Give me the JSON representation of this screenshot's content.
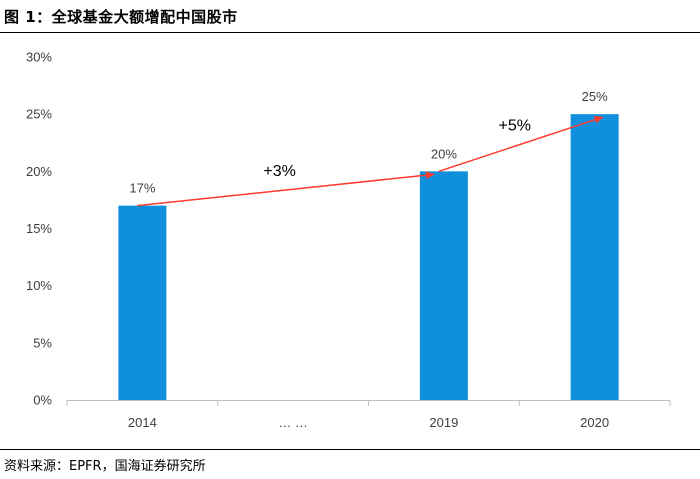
{
  "figure_title": "图 1：全球基金大额增配中国股市",
  "source": "资料来源：EPFR，国海证券研究所",
  "colors": {
    "bar": "#0f8fdc",
    "arrow": "#ff3b30",
    "axis": "#bfbfbf"
  },
  "chart_data": {
    "type": "bar",
    "title": "",
    "xlabel": "",
    "ylabel": "",
    "categories": [
      "2014",
      "… …",
      "2019",
      "2020"
    ],
    "values": [
      17,
      null,
      20,
      25
    ],
    "data_labels": [
      "17%",
      "",
      "20%",
      "25%"
    ],
    "ylim": [
      0,
      30
    ],
    "y_ticks": [
      0,
      5,
      10,
      15,
      20,
      25,
      30
    ],
    "y_tick_labels": [
      "0%",
      "5%",
      "10%",
      "15%",
      "20%",
      "25%",
      "30%"
    ],
    "grid": false,
    "annotations": [
      {
        "text": "+3%",
        "from": "2014",
        "to": "2019"
      },
      {
        "text": "+5%",
        "from": "2019",
        "to": "2020"
      }
    ]
  }
}
